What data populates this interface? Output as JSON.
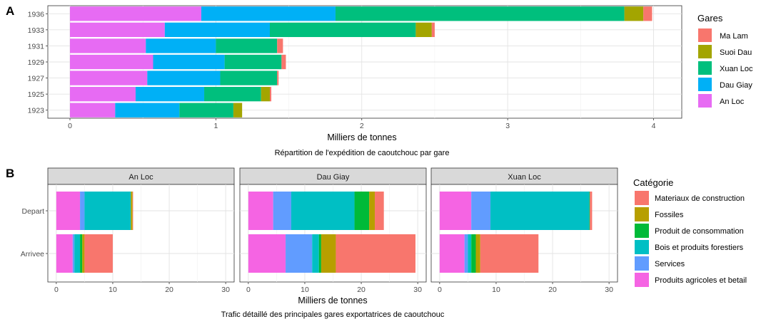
{
  "panels": {
    "A": {
      "tag": "A"
    },
    "B": {
      "tag": "B"
    }
  },
  "chart_data": [
    {
      "type": "bar",
      "orientation": "horizontal",
      "stacked": true,
      "panel_tag": "A",
      "title": "Répartition de l'expédition de caoutchouc par gare",
      "xlabel": "Milliers de tonnes",
      "ylabel": "",
      "xlim": [
        0,
        4.05
      ],
      "xticks": [
        "0",
        "1",
        "2",
        "3",
        "4"
      ],
      "categories": [
        "1936",
        "1933",
        "1931",
        "1929",
        "1927",
        "1925",
        "1923"
      ],
      "legend": {
        "title": "Gares",
        "position": "right",
        "entries": [
          "Ma Lam",
          "Suoi Dau",
          "Xuan Loc",
          "Dau Giay",
          "An Loc"
        ]
      },
      "series": [
        {
          "name": "An Loc",
          "color": "#E76BF3",
          "values": [
            0.9,
            0.65,
            0.52,
            0.57,
            0.53,
            0.45,
            0.31
          ]
        },
        {
          "name": "Dau Giay",
          "color": "#00B0F6",
          "values": [
            0.92,
            0.72,
            0.48,
            0.49,
            0.5,
            0.47,
            0.44
          ]
        },
        {
          "name": "Xuan Loc",
          "color": "#00BF7D",
          "values": [
            1.98,
            1.0,
            0.42,
            0.39,
            0.39,
            0.39,
            0.37
          ]
        },
        {
          "name": "Suoi Dau",
          "color": "#A3A500",
          "values": [
            0.13,
            0.11,
            0.0,
            0.0,
            0.0,
            0.06,
            0.06
          ]
        },
        {
          "name": "Ma Lam",
          "color": "#F8766D",
          "values": [
            0.06,
            0.02,
            0.04,
            0.03,
            0.01,
            0.01,
            0.0
          ]
        }
      ],
      "grid": true
    },
    {
      "type": "bar",
      "orientation": "horizontal",
      "stacked": true,
      "faceted": true,
      "panel_tag": "B",
      "title": "Trafic détaillé des principales gares exportatrices de caoutchouc",
      "xlabel": "Milliers de tonnes",
      "ylabel": "",
      "xlim": [
        -1.5,
        31.5
      ],
      "xticks": [
        "0",
        "10",
        "20",
        "30"
      ],
      "categories": [
        "Depart",
        "Arrivee"
      ],
      "legend": {
        "title": "Catégorie",
        "position": "right",
        "entries": [
          "Materiaux de construction",
          "Fossiles",
          "Produit de consommation",
          "Bois et produits forestiers",
          "Services",
          "Produits agricoles et betail"
        ]
      },
      "series_colors": {
        "Produits agricoles et betail": "#F564E3",
        "Services": "#619CFF",
        "Bois et produits forestiers": "#00BFC4",
        "Produit de consommation": "#00BA38",
        "Fossiles": "#B79F00",
        "Materiaux de construction": "#F8766D"
      },
      "facets": [
        {
          "name": "An Loc",
          "Depart": {
            "Produits agricoles et betail": 4.2,
            "Services": 0.8,
            "Bois et produits forestiers": 8.2,
            "Produit de consommation": 0.0,
            "Fossiles": 0.3,
            "Materiaux de construction": 0.1
          },
          "Arrivee": {
            "Produits agricoles et betail": 2.9,
            "Services": 0.3,
            "Bois et produits forestiers": 1.0,
            "Produit de consommation": 0.4,
            "Fossiles": 0.4,
            "Materiaux de construction": 5.0
          }
        },
        {
          "name": "Dau Giay",
          "Depart": {
            "Produits agricoles et betail": 4.4,
            "Services": 3.2,
            "Bois et produits forestiers": 11.2,
            "Produit de consommation": 2.6,
            "Fossiles": 1.0,
            "Materiaux de construction": 1.6
          },
          "Arrivee": {
            "Produits agricoles et betail": 6.6,
            "Services": 4.7,
            "Bois et produits forestiers": 1.2,
            "Produit de consommation": 0.4,
            "Fossiles": 2.6,
            "Materiaux de construction": 14.1
          }
        },
        {
          "name": "Xuan Loc",
          "Depart": {
            "Produits agricoles et betail": 5.6,
            "Services": 3.4,
            "Bois et produits forestiers": 17.5,
            "Produit de consommation": 0.1,
            "Fossiles": 0.0,
            "Materiaux de construction": 0.4
          },
          "Arrivee": {
            "Produits agricoles et betail": 4.4,
            "Services": 0.6,
            "Bois et produits forestiers": 0.6,
            "Produit de consommation": 0.8,
            "Fossiles": 0.8,
            "Materiaux de construction": 10.3
          }
        }
      ],
      "grid": true
    }
  ]
}
